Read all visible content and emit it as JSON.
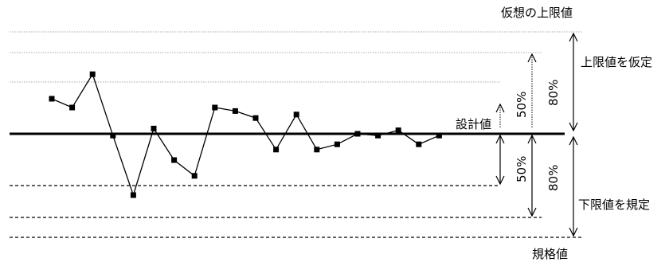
{
  "chart_data": {
    "type": "line",
    "series": [
      {
        "values": [
          1.0,
          0.75,
          1.7,
          -0.05,
          -1.75,
          0.15,
          -0.75,
          -1.2,
          0.75,
          0.65,
          0.45,
          -0.45,
          0.55,
          -0.45,
          -0.3,
          0.0,
          -0.05,
          0.1,
          -0.3,
          -0.05
        ]
      }
    ],
    "reference_lines": {
      "design_value": 0,
      "upper_50": 1.0,
      "upper_80": 2.0,
      "assumed_upper": 3.0,
      "lower_50": -1.65,
      "lower_80": -2.65,
      "spec": -3.3
    }
  },
  "labels": {
    "assumed_upper_limit": "仮想の上限値",
    "set_upper_limit": "上限値を仮定",
    "design_value": "設計値",
    "set_lower_limit": "下限値を規定",
    "spec_value": "規格値",
    "pct_50_upper": "50%",
    "pct_80_upper": "80%",
    "pct_50_lower": "50%",
    "pct_80_lower": "80%"
  }
}
